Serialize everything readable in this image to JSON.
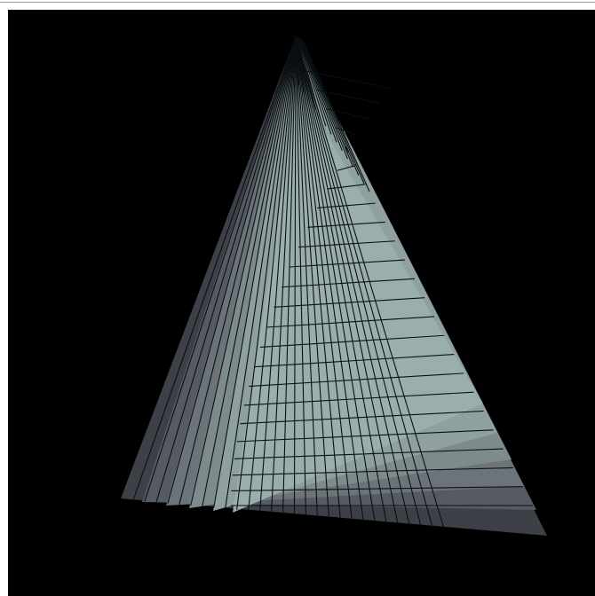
{
  "artwork": {
    "background_color": "#000000",
    "frame_color": "#ffffff",
    "layer_colors": [
      "#3e4048",
      "#565b62",
      "#6c7479",
      "#7e8b8d",
      "#8fa0a1",
      "#9aaeae"
    ],
    "line_color": "#0a0f12",
    "fan_line_count": 28,
    "envelope_line_count": 24
  }
}
